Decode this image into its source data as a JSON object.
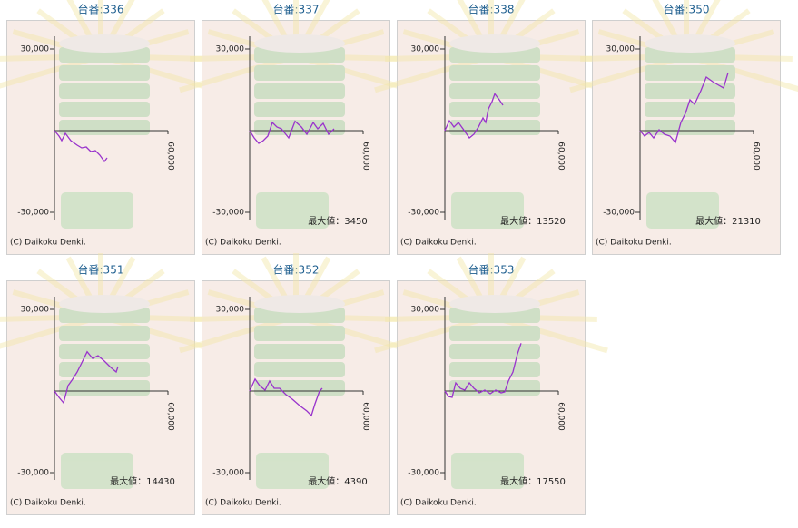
{
  "chart_data": [
    {
      "type": "line",
      "title": "台番:336",
      "xlim": [
        0,
        60000
      ],
      "xticks": [
        {
          "value": 60000,
          "label": "60,000"
        }
      ],
      "ylim": [
        -30000,
        30000
      ],
      "yticks": [
        {
          "value": 30000,
          "label": "30,000"
        },
        {
          "value": -30000,
          "label": "-30,000"
        }
      ],
      "color": "#9933cc",
      "credit": "(C) Daikoku Denki.",
      "x": [
        0,
        2400,
        3840,
        5760,
        8640,
        12000,
        14400,
        16800,
        19200,
        21600,
        24000,
        26400,
        27840
      ],
      "values": [
        0,
        -2000,
        -3667,
        -1000,
        -3667,
        -5333,
        -6333,
        -6000,
        -7667,
        -7333,
        -9000,
        -11333,
        -10000
      ]
    },
    {
      "type": "line",
      "title": "台番:337",
      "xlim": [
        0,
        60000
      ],
      "xticks": [
        {
          "value": 60000,
          "label": "60,000"
        }
      ],
      "ylim": [
        -30000,
        30000
      ],
      "yticks": [
        {
          "value": 30000,
          "label": "30,000"
        },
        {
          "value": -30000,
          "label": "-30,000"
        }
      ],
      "color": "#9933cc",
      "credit": "(C) Daikoku Denki.",
      "annotation": "最大値：3450",
      "x": [
        0,
        2400,
        4800,
        7200,
        9600,
        12000,
        14400,
        16800,
        20640,
        24000,
        27360,
        30240,
        33600,
        36000,
        38880,
        41760,
        44640
      ],
      "values": [
        0,
        -2667,
        -4667,
        -3667,
        -2000,
        3000,
        1333,
        667,
        -2667,
        3450,
        1333,
        -1333,
        3000,
        667,
        2667,
        -1333,
        667
      ]
    },
    {
      "type": "line",
      "title": "台番:338",
      "xlim": [
        0,
        60000
      ],
      "xticks": [
        {
          "value": 60000,
          "label": "60,000"
        }
      ],
      "ylim": [
        -30000,
        30000
      ],
      "yticks": [
        {
          "value": 30000,
          "label": "30,000"
        },
        {
          "value": -30000,
          "label": "-30,000"
        }
      ],
      "color": "#9933cc",
      "credit": "(C) Daikoku Denki.",
      "annotation": "最大値：13520",
      "x": [
        0,
        2400,
        4800,
        7200,
        9600,
        12960,
        15360,
        17760,
        20160,
        21600,
        23040,
        24960,
        26400,
        28800,
        30720
      ],
      "values": [
        0,
        3667,
        1333,
        3000,
        667,
        -2667,
        -1333,
        1333,
        4667,
        3000,
        8000,
        10667,
        13520,
        11333,
        9333
      ]
    },
    {
      "type": "line",
      "title": "台番:350",
      "xlim": [
        0,
        60000
      ],
      "xticks": [
        {
          "value": 60000,
          "label": "60,000"
        }
      ],
      "ylim": [
        -30000,
        30000
      ],
      "yticks": [
        {
          "value": 30000,
          "label": "30,000"
        },
        {
          "value": -30000,
          "label": "-30,000"
        }
      ],
      "color": "#9933cc",
      "credit": "(C) Daikoku Denki.",
      "annotation": "最大値：21310",
      "x": [
        0,
        2400,
        4800,
        7200,
        10080,
        12960,
        15840,
        18720,
        21600,
        24000,
        26400,
        28800,
        32160,
        35040,
        38400,
        40800,
        44160,
        46560
      ],
      "values": [
        0,
        -2000,
        -667,
        -2667,
        333,
        -1333,
        -2000,
        -4333,
        3000,
        6333,
        11333,
        9667,
        14667,
        19667,
        18000,
        17000,
        15667,
        21310
      ]
    },
    {
      "type": "line",
      "title": "台番:351",
      "xlim": [
        0,
        60000
      ],
      "xticks": [
        {
          "value": 60000,
          "label": "60,000"
        }
      ],
      "ylim": [
        -30000,
        30000
      ],
      "yticks": [
        {
          "value": 30000,
          "label": "30,000"
        },
        {
          "value": -30000,
          "label": "-30,000"
        }
      ],
      "color": "#9933cc",
      "credit": "(C) Daikoku Denki.",
      "annotation": "最大値：14430",
      "x": [
        0,
        2400,
        4800,
        7200,
        9600,
        12000,
        14400,
        17280,
        20160,
        23040,
        26400,
        29760,
        32640,
        33600
      ],
      "values": [
        0,
        -2333,
        -4333,
        2000,
        4333,
        7000,
        10333,
        14430,
        12000,
        13000,
        11000,
        8667,
        7000,
        9000
      ]
    },
    {
      "type": "line",
      "title": "台番:352",
      "xlim": [
        0,
        60000
      ],
      "xticks": [
        {
          "value": 60000,
          "label": "60,000"
        }
      ],
      "ylim": [
        -30000,
        30000
      ],
      "yticks": [
        {
          "value": 30000,
          "label": "30,000"
        },
        {
          "value": -30000,
          "label": "-30,000"
        }
      ],
      "color": "#9933cc",
      "credit": "(C) Daikoku Denki.",
      "annotation": "最大値：4390",
      "x": [
        0,
        2880,
        5280,
        8160,
        10560,
        12960,
        15840,
        19200,
        22560,
        26400,
        30240,
        32640,
        34560,
        36960,
        38400
      ],
      "values": [
        0,
        4390,
        2000,
        333,
        3667,
        1000,
        1000,
        -1333,
        -3000,
        -5333,
        -7333,
        -9000,
        -4667,
        0,
        1000
      ]
    },
    {
      "type": "line",
      "title": "台番:353",
      "xlim": [
        0,
        60000
      ],
      "xticks": [
        {
          "value": 60000,
          "label": "60,000"
        }
      ],
      "ylim": [
        -30000,
        30000
      ],
      "yticks": [
        {
          "value": 30000,
          "label": "30,000"
        },
        {
          "value": -30000,
          "label": "-30,000"
        }
      ],
      "color": "#9933cc",
      "credit": "(C) Daikoku Denki.",
      "annotation": "最大値：17550",
      "x": [
        0,
        1920,
        3840,
        5760,
        8160,
        10560,
        12960,
        15360,
        18240,
        21120,
        24000,
        26880,
        29760,
        31680,
        33600,
        36000,
        38400,
        40320
      ],
      "values": [
        0,
        -2000,
        -2333,
        3000,
        1000,
        333,
        3000,
        1000,
        -667,
        333,
        -1000,
        333,
        -667,
        -333,
        3667,
        7000,
        13667,
        17550
      ]
    }
  ]
}
